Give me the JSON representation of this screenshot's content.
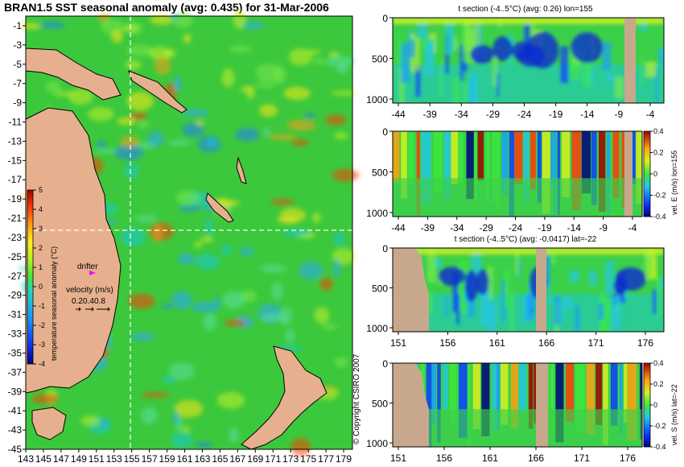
{
  "chart_data": [
    {
      "type": "heatmap",
      "title": "BRAN1.5 SST seasonal anomaly (avg: 0.435) for 31-Mar-2006",
      "xlim": [
        143,
        180
      ],
      "ylim": [
        -45,
        0
      ],
      "xticks": [
        "143",
        "145",
        "147",
        "149",
        "151",
        "153",
        "155",
        "157",
        "159",
        "161",
        "163",
        "165",
        "167",
        "169",
        "171",
        "173",
        "175",
        "177",
        "179"
      ],
      "yticks": [
        "-1",
        "-3",
        "-5",
        "-7",
        "-9",
        "-11",
        "-13",
        "-15",
        "-17",
        "-19",
        "-21",
        "-23",
        "-25",
        "-27",
        "-29",
        "-31",
        "-33",
        "-35",
        "-37",
        "-39",
        "-41",
        "-43",
        "-45"
      ],
      "colorbar": {
        "label": "temperature seasonal anomaly (°C)",
        "ticks": [
          "5",
          "4",
          "3",
          "2",
          "1",
          "0",
          "-1",
          "-2",
          "-3",
          "-4"
        ],
        "range": [
          -4,
          5
        ]
      },
      "crosshair": {
        "lon": 155,
        "lat": -22
      },
      "annotations": {
        "drifter": "drifter",
        "velocity_label": "velocity (m/s)",
        "velocity_scale": [
          "0.2",
          "0.4",
          "0.8"
        ],
        "copyright": "© Copyright CSIRO 2007"
      }
    },
    {
      "type": "heatmap",
      "title": "t section (-4..5°C) (avg: 0.26) lon=155",
      "xticks": [
        "-44",
        "-39",
        "-34",
        "-29",
        "-24",
        "-19",
        "-14",
        "-9",
        "-4"
      ],
      "yticks": [
        "0",
        "500",
        "1000"
      ],
      "ylim": [
        1050,
        0
      ]
    },
    {
      "type": "heatmap",
      "title": "",
      "xticks": [
        "-44",
        "-39",
        "-34",
        "-29",
        "-24",
        "-19",
        "-14",
        "-9",
        "-4"
      ],
      "yticks": [
        "0",
        "500",
        "1000"
      ],
      "ylim": [
        1050,
        0
      ],
      "colorbar": {
        "label": "vel. E (m/s) lon=155",
        "ticks": [
          "0.4",
          "0.2",
          "0",
          "-0.2",
          "-0.4"
        ],
        "range": [
          -0.4,
          0.4
        ]
      }
    },
    {
      "type": "heatmap",
      "title": "t section (-4..5°C) (avg: -0.0417) lat=-22",
      "xticks": [
        "151",
        "156",
        "161",
        "166",
        "171",
        "176"
      ],
      "yticks": [
        "0",
        "500",
        "1000"
      ],
      "ylim": [
        1050,
        0
      ]
    },
    {
      "type": "heatmap",
      "title": "",
      "xticks": [
        "151",
        "156",
        "161",
        "166",
        "171",
        "176"
      ],
      "yticks": [
        "0",
        "500",
        "1000"
      ],
      "ylim": [
        1050,
        0
      ],
      "colorbar": {
        "label": "vel. S (m/s) lat=-22",
        "ticks": [
          "0.4",
          "0.2",
          "0",
          "-0.2",
          "-0.4"
        ],
        "range": [
          -0.4,
          0.4
        ]
      }
    }
  ]
}
